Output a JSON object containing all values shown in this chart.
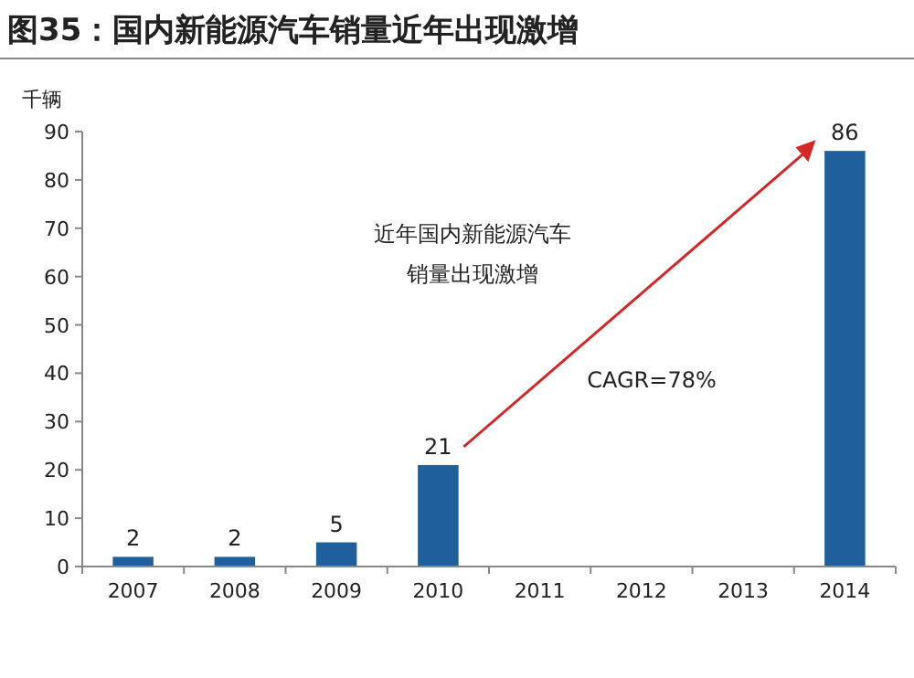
{
  "chart_data": {
    "type": "bar",
    "title": "图35：国内新能源汽车销量近年出现激增",
    "ylabel": "千辆",
    "categories": [
      "2007",
      "2008",
      "2009",
      "2010",
      "2011",
      "2012",
      "2013",
      "2014"
    ],
    "values": [
      2,
      2,
      5,
      21,
      null,
      null,
      null,
      86
    ],
    "color": "#1f5f9c",
    "ylim": [
      0,
      90
    ],
    "yticks": [
      0,
      10,
      20,
      30,
      40,
      50,
      60,
      70,
      80,
      90
    ],
    "data_labels": true,
    "grid": false,
    "annotations": [
      "近年国内新能源汽车",
      "销量出现激增",
      "CAGR=78%"
    ]
  }
}
